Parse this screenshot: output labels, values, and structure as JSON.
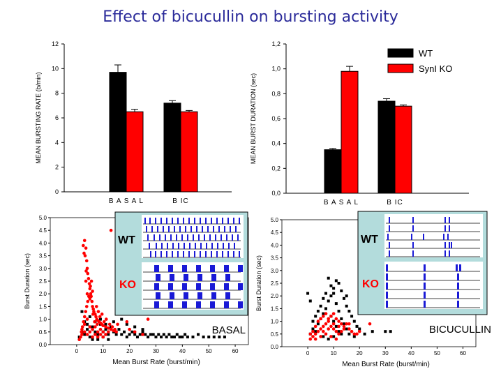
{
  "title": "Effect of bicucullin on bursting activity",
  "legend": [
    {
      "label": "WT",
      "color": "#000000"
    },
    {
      "label": "SynI KO",
      "color": "#ff0000"
    }
  ],
  "colors": {
    "wt": "#000000",
    "ko": "#ff0000",
    "raster": "#1a1ad6",
    "inset_bg": "#b3dcdc",
    "title": "#2b2b9a"
  },
  "chart_data": [
    {
      "id": "rate_bar",
      "type": "bar",
      "ylabel": "MEAN BURSTING RATE (b/min)",
      "categories": [
        "B A S A L",
        "B IC"
      ],
      "ylim": [
        0,
        12
      ],
      "yticks": [
        "0",
        "2",
        "4",
        "6",
        "8",
        "10",
        "12"
      ],
      "series": [
        {
          "name": "WT",
          "values": [
            9.7,
            7.2
          ],
          "errors": [
            0.6,
            0.2
          ]
        },
        {
          "name": "SynI KO",
          "values": [
            6.5,
            6.5
          ],
          "errors": [
            0.2,
            0.1
          ]
        }
      ]
    },
    {
      "id": "duration_bar",
      "type": "bar",
      "ylabel": "MEAN BURST DURATION (sec)",
      "categories": [
        "B A S A L",
        "B IC"
      ],
      "ylim": [
        0,
        1.2
      ],
      "yticks": [
        "0,0",
        "0,2",
        "0,4",
        "0,6",
        "0,8",
        "1,0",
        "1,2"
      ],
      "series": [
        {
          "name": "WT",
          "values": [
            0.35,
            0.74
          ],
          "errors": [
            0.01,
            0.02
          ]
        },
        {
          "name": "SynI KO",
          "values": [
            0.98,
            0.7
          ],
          "errors": [
            0.04,
            0.01
          ]
        }
      ]
    },
    {
      "id": "basal_scatter",
      "type": "scatter",
      "xlabel": "Mean Burst Rate (burst/min)",
      "ylabel": "Burst Duration (sec)",
      "xlim": [
        -10,
        65
      ],
      "ylim": [
        0,
        5
      ],
      "xticks": [
        "0",
        "10",
        "20",
        "30",
        "40",
        "50",
        "60"
      ],
      "yticks": [
        "0.0",
        "0.5",
        "1.0",
        "1.5",
        "2.0",
        "2.5",
        "3.0",
        "3.5",
        "4.0",
        "4.5",
        "5.0"
      ],
      "condition_label": "BASAL",
      "inset": {
        "wt_label": "WT",
        "ko_label": "KO"
      },
      "series": [
        {
          "name": "WT",
          "points": [
            [
              1,
              0.3
            ],
            [
              2,
              0.5
            ],
            [
              3,
              0.4
            ],
            [
              4,
              0.6
            ],
            [
              5,
              0.3
            ],
            [
              6,
              0.7
            ],
            [
              7,
              0.5
            ],
            [
              8,
              0.4
            ],
            [
              9,
              0.8
            ],
            [
              10,
              0.5
            ],
            [
              11,
              0.6
            ],
            [
              12,
              0.4
            ],
            [
              13,
              0.7
            ],
            [
              14,
              0.5
            ],
            [
              15,
              0.4
            ],
            [
              16,
              0.6
            ],
            [
              17,
              0.4
            ],
            [
              18,
              0.5
            ],
            [
              19,
              0.3
            ],
            [
              20,
              0.4
            ],
            [
              21,
              0.5
            ],
            [
              22,
              0.4
            ],
            [
              23,
              0.3
            ],
            [
              24,
              0.4
            ],
            [
              25,
              0.5
            ],
            [
              26,
              0.4
            ],
            [
              27,
              0.3
            ],
            [
              28,
              0.4
            ],
            [
              29,
              0.4
            ],
            [
              30,
              0.3
            ],
            [
              31,
              0.4
            ],
            [
              32,
              0.3
            ],
            [
              33,
              0.4
            ],
            [
              34,
              0.3
            ],
            [
              35,
              0.4
            ],
            [
              36,
              0.3
            ],
            [
              37,
              0.3
            ],
            [
              38,
              0.4
            ],
            [
              39,
              0.3
            ],
            [
              40,
              0.3
            ],
            [
              41,
              0.4
            ],
            [
              42,
              0.3
            ],
            [
              44,
              0.3
            ],
            [
              46,
              0.4
            ],
            [
              48,
              0.3
            ],
            [
              50,
              0.3
            ],
            [
              52,
              0.3
            ],
            [
              54,
              0.3
            ],
            [
              56,
              0.3
            ],
            [
              3,
              0.9
            ],
            [
              5,
              1.1
            ],
            [
              7,
              0.9
            ],
            [
              9,
              1.0
            ],
            [
              11,
              0.8
            ],
            [
              14,
              0.9
            ],
            [
              17,
              1.0
            ],
            [
              19,
              0.8
            ],
            [
              22,
              0.7
            ],
            [
              25,
              0.6
            ],
            [
              2,
              1.3
            ],
            [
              4,
              0.8
            ],
            [
              6,
              0.2
            ],
            [
              8,
              0.2
            ],
            [
              10,
              0.3
            ],
            [
              12,
              0.2
            ]
          ]
        },
        {
          "name": "SynI KO",
          "points": [
            [
              3,
              4.1
            ],
            [
              3.5,
              3.8
            ],
            [
              3.2,
              3.5
            ],
            [
              3.8,
              3.3
            ],
            [
              4,
              3.0
            ],
            [
              4.2,
              2.8
            ],
            [
              4.5,
              2.6
            ],
            [
              4.8,
              2.4
            ],
            [
              5,
              2.2
            ],
            [
              5.3,
              2.0
            ],
            [
              5.5,
              1.9
            ],
            [
              5.8,
              1.7
            ],
            [
              6,
              1.5
            ],
            [
              6.3,
              1.4
            ],
            [
              6.5,
              1.3
            ],
            [
              7,
              1.2
            ],
            [
              7.3,
              1.1
            ],
            [
              7.6,
              1.0
            ],
            [
              8,
              0.95
            ],
            [
              8.5,
              0.9
            ],
            [
              9,
              0.85
            ],
            [
              9.5,
              0.8
            ],
            [
              10,
              0.75
            ],
            [
              11,
              0.7
            ],
            [
              12,
              0.65
            ],
            [
              13,
              4.5
            ],
            [
              13,
              0.6
            ],
            [
              14,
              0.55
            ],
            [
              15,
              0.5
            ],
            [
              16,
              1.6
            ],
            [
              17,
              1.7
            ],
            [
              18,
              1.3
            ],
            [
              19,
              0.9
            ],
            [
              20,
              0.6
            ],
            [
              22,
              0.5
            ],
            [
              25,
              0.4
            ],
            [
              27,
              1.0
            ],
            [
              1,
              0.2
            ],
            [
              2,
              0.4
            ],
            [
              2,
              0.6
            ],
            [
              3,
              0.5
            ],
            [
              3,
              0.8
            ],
            [
              4,
              0.4
            ],
            [
              4,
              1.0
            ],
            [
              5,
              0.5
            ],
            [
              5,
              0.7
            ],
            [
              6,
              0.3
            ],
            [
              6,
              0.6
            ],
            [
              7,
              0.4
            ],
            [
              7,
              0.7
            ],
            [
              8,
              0.5
            ],
            [
              8,
              0.3
            ],
            [
              9,
              0.6
            ],
            [
              9,
              0.4
            ],
            [
              10,
              0.5
            ],
            [
              10,
              0.3
            ],
            [
              11,
              0.4
            ],
            [
              12,
              0.5
            ],
            [
              4,
              2.0
            ],
            [
              3.5,
              2.5
            ],
            [
              5,
              1.8
            ],
            [
              6,
              2.1
            ],
            [
              2.5,
              3.9
            ],
            [
              2.8,
              3.6
            ],
            [
              3.6,
              2.9
            ],
            [
              6.8,
              0.9
            ],
            [
              7.5,
              1.5
            ],
            [
              8.2,
              1.3
            ],
            [
              1.5,
              0.3
            ],
            [
              1.8,
              0.5
            ],
            [
              2.2,
              0.7
            ],
            [
              2.6,
              0.9
            ],
            [
              3,
              1.1
            ],
            [
              3.4,
              1.3
            ],
            [
              3.8,
              1.5
            ],
            [
              4.2,
              1.7
            ],
            [
              4.6,
              1.9
            ],
            [
              5.2,
              2.3
            ],
            [
              5.6,
              2.5
            ],
            [
              6.2,
              1.2
            ],
            [
              7.8,
              0.8
            ],
            [
              8.8,
              1.1
            ],
            [
              9.6,
              1.2
            ],
            [
              10.4,
              0.9
            ],
            [
              11.2,
              1.0
            ],
            [
              12.5,
              0.8
            ],
            [
              13.5,
              0.7
            ],
            [
              14.5,
              0.6
            ],
            [
              15.5,
              0.8
            ]
          ]
        }
      ]
    },
    {
      "id": "bic_scatter",
      "type": "scatter",
      "xlabel": "Mean Burst Rate (burst/min)",
      "ylabel": "Burst Duration (sec)",
      "xlim": [
        -10,
        65
      ],
      "ylim": [
        0,
        5
      ],
      "xticks": [
        "0",
        "10",
        "20",
        "30",
        "40",
        "50",
        "60"
      ],
      "yticks": [
        "0.0",
        "0.5",
        "1.0",
        "1.5",
        "2.0",
        "2.5",
        "3.0",
        "3.5",
        "4.0",
        "4.5",
        "5.0"
      ],
      "condition_label": "BICUCULLIN",
      "inset": {
        "wt_label": "WT",
        "ko_label": "KO"
      },
      "series": [
        {
          "name": "WT",
          "points": [
            [
              1,
              0.5
            ],
            [
              2,
              0.7
            ],
            [
              3,
              0.6
            ],
            [
              4,
              0.9
            ],
            [
              5,
              1.1
            ],
            [
              6,
              1.3
            ],
            [
              7,
              1.5
            ],
            [
              8,
              1.8
            ],
            [
              9,
              2.0
            ],
            [
              10,
              2.3
            ],
            [
              11,
              2.6
            ],
            [
              12,
              2.5
            ],
            [
              13,
              2.2
            ],
            [
              14,
              1.9
            ],
            [
              15,
              1.6
            ],
            [
              16,
              1.4
            ],
            [
              17,
              1.2
            ],
            [
              18,
              1.0
            ],
            [
              19,
              0.8
            ],
            [
              20,
              0.7
            ],
            [
              8,
              2.7
            ],
            [
              9,
              2.4
            ],
            [
              10,
              2.1
            ],
            [
              11,
              1.7
            ],
            [
              12,
              1.4
            ],
            [
              13,
              1.1
            ],
            [
              14,
              0.9
            ],
            [
              15,
              0.7
            ],
            [
              6,
              1.9
            ],
            [
              7,
              2.1
            ],
            [
              5,
              1.6
            ],
            [
              4,
              1.4
            ],
            [
              3,
              1.2
            ],
            [
              2,
              1.0
            ],
            [
              0,
              2.1
            ],
            [
              1,
              1.8
            ],
            [
              9,
              1.2
            ],
            [
              10,
              1.0
            ],
            [
              11,
              0.8
            ],
            [
              12,
              0.6
            ],
            [
              13,
              0.5
            ],
            [
              16,
              0.5
            ],
            [
              18,
              0.4
            ],
            [
              22,
              0.5
            ],
            [
              25,
              0.6
            ],
            [
              30,
              0.6
            ],
            [
              32,
              0.6
            ],
            [
              8,
              0.3
            ],
            [
              10,
              0.4
            ],
            [
              6,
              0.4
            ],
            [
              15,
              2.0
            ]
          ]
        },
        {
          "name": "SynI KO",
          "points": [
            [
              1,
              0.3
            ],
            [
              2,
              0.4
            ],
            [
              3,
              0.5
            ],
            [
              4,
              0.6
            ],
            [
              5,
              0.7
            ],
            [
              6,
              0.8
            ],
            [
              7,
              0.9
            ],
            [
              8,
              1.0
            ],
            [
              9,
              0.8
            ],
            [
              10,
              0.7
            ],
            [
              11,
              0.6
            ],
            [
              12,
              0.5
            ],
            [
              13,
              0.6
            ],
            [
              14,
              0.8
            ],
            [
              15,
              0.9
            ],
            [
              16,
              0.7
            ],
            [
              17,
              0.6
            ],
            [
              18,
              0.5
            ],
            [
              19,
              0.5
            ],
            [
              20,
              0.6
            ],
            [
              24,
              0.9
            ],
            [
              2,
              0.6
            ],
            [
              3,
              0.8
            ],
            [
              4,
              1.0
            ],
            [
              5,
              1.1
            ],
            [
              6,
              1.2
            ],
            [
              7,
              1.3
            ],
            [
              8,
              1.1
            ],
            [
              9,
              1.2
            ],
            [
              10,
              1.3
            ],
            [
              11,
              1.1
            ],
            [
              12,
              1.0
            ],
            [
              13,
              0.9
            ],
            [
              1,
              0.5
            ],
            [
              3,
              0.3
            ],
            [
              5,
              0.4
            ],
            [
              7,
              0.5
            ],
            [
              9,
              0.4
            ],
            [
              11,
              0.3
            ],
            [
              6,
              0.6
            ],
            [
              8,
              0.7
            ],
            [
              10,
              0.9
            ],
            [
              12,
              0.8
            ],
            [
              14,
              0.7
            ],
            [
              16,
              0.9
            ]
          ]
        }
      ]
    }
  ]
}
